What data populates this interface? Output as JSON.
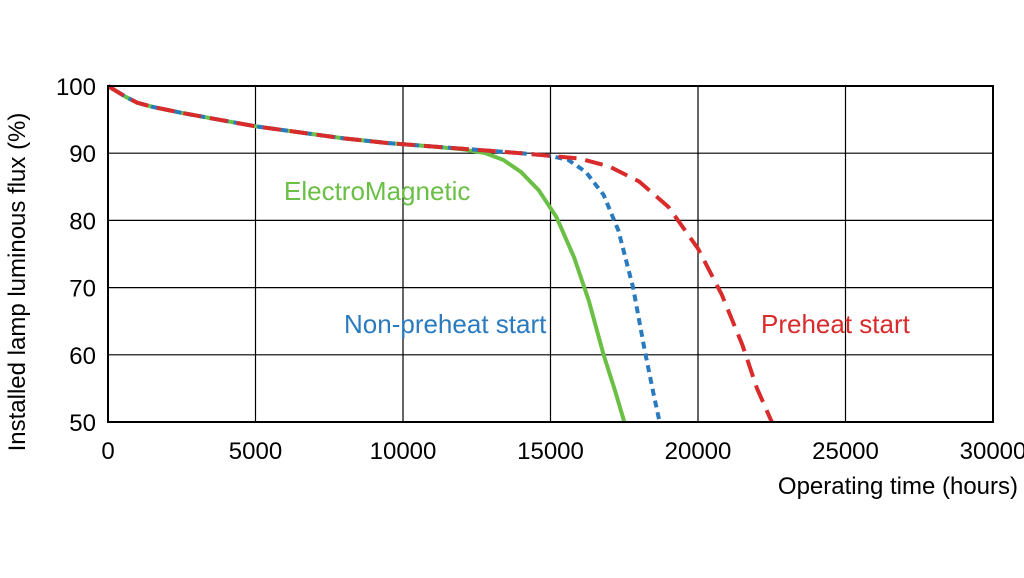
{
  "chart_data": {
    "type": "line",
    "xlabel": "Operating time (hours)",
    "ylabel": "Installed lamp luminous flux  (%)",
    "xlim": [
      0,
      30000
    ],
    "ylim": [
      50,
      100
    ],
    "x_ticks": [
      0,
      5000,
      10000,
      15000,
      20000,
      25000,
      30000
    ],
    "y_ticks": [
      50,
      60,
      70,
      80,
      90,
      100
    ],
    "grid": true,
    "series": [
      {
        "name": "ElectroMagnetic",
        "color": "#6abf45",
        "style": "solid",
        "points": [
          [
            0,
            100
          ],
          [
            300,
            99.2
          ],
          [
            600,
            98.4
          ],
          [
            1000,
            97.5
          ],
          [
            1500,
            96.9
          ],
          [
            2500,
            96.0
          ],
          [
            3500,
            95.2
          ],
          [
            5000,
            94.0
          ],
          [
            6500,
            93.1
          ],
          [
            8000,
            92.2
          ],
          [
            9500,
            91.5
          ],
          [
            11000,
            91.0
          ],
          [
            12000,
            90.6
          ],
          [
            12800,
            90.0
          ],
          [
            13400,
            89.0
          ],
          [
            14000,
            87.2
          ],
          [
            14600,
            84.5
          ],
          [
            15200,
            80.5
          ],
          [
            15800,
            74.5
          ],
          [
            16300,
            68.0
          ],
          [
            16800,
            60.0
          ],
          [
            17200,
            54.5
          ],
          [
            17500,
            50.0
          ]
        ]
      },
      {
        "name": "Non-preheat start",
        "color": "#2a7abf",
        "style": "dotted",
        "points": [
          [
            0,
            100
          ],
          [
            300,
            99.2
          ],
          [
            600,
            98.4
          ],
          [
            1000,
            97.5
          ],
          [
            1500,
            96.9
          ],
          [
            2500,
            96.0
          ],
          [
            3500,
            95.2
          ],
          [
            5000,
            94.0
          ],
          [
            6500,
            93.1
          ],
          [
            8000,
            92.2
          ],
          [
            9500,
            91.5
          ],
          [
            11000,
            91.0
          ],
          [
            12500,
            90.5
          ],
          [
            14000,
            90.0
          ],
          [
            15000,
            89.6
          ],
          [
            15600,
            89.0
          ],
          [
            16200,
            87.2
          ],
          [
            16800,
            83.8
          ],
          [
            17300,
            78.5
          ],
          [
            17800,
            70.0
          ],
          [
            18200,
            60.5
          ],
          [
            18500,
            54.0
          ],
          [
            18700,
            50.0
          ]
        ]
      },
      {
        "name": "Preheat start",
        "color": "#d92b2b",
        "style": "dashed",
        "points": [
          [
            0,
            100
          ],
          [
            300,
            99.2
          ],
          [
            600,
            98.4
          ],
          [
            1000,
            97.5
          ],
          [
            1500,
            96.9
          ],
          [
            2500,
            96.0
          ],
          [
            3500,
            95.2
          ],
          [
            5000,
            94.0
          ],
          [
            6500,
            93.1
          ],
          [
            8000,
            92.2
          ],
          [
            9500,
            91.5
          ],
          [
            11000,
            91.0
          ],
          [
            12500,
            90.5
          ],
          [
            14000,
            90.0
          ],
          [
            15000,
            89.6
          ],
          [
            16000,
            89.2
          ],
          [
            17000,
            88.0
          ],
          [
            18000,
            85.8
          ],
          [
            19000,
            82.0
          ],
          [
            20000,
            75.8
          ],
          [
            20800,
            69.0
          ],
          [
            21500,
            61.5
          ],
          [
            22000,
            55.0
          ],
          [
            22500,
            50.0
          ]
        ]
      }
    ]
  },
  "labels": {
    "electromagnetic": "ElectroMagnetic",
    "non_preheat": "Non-preheat start",
    "preheat": "Preheat start"
  }
}
